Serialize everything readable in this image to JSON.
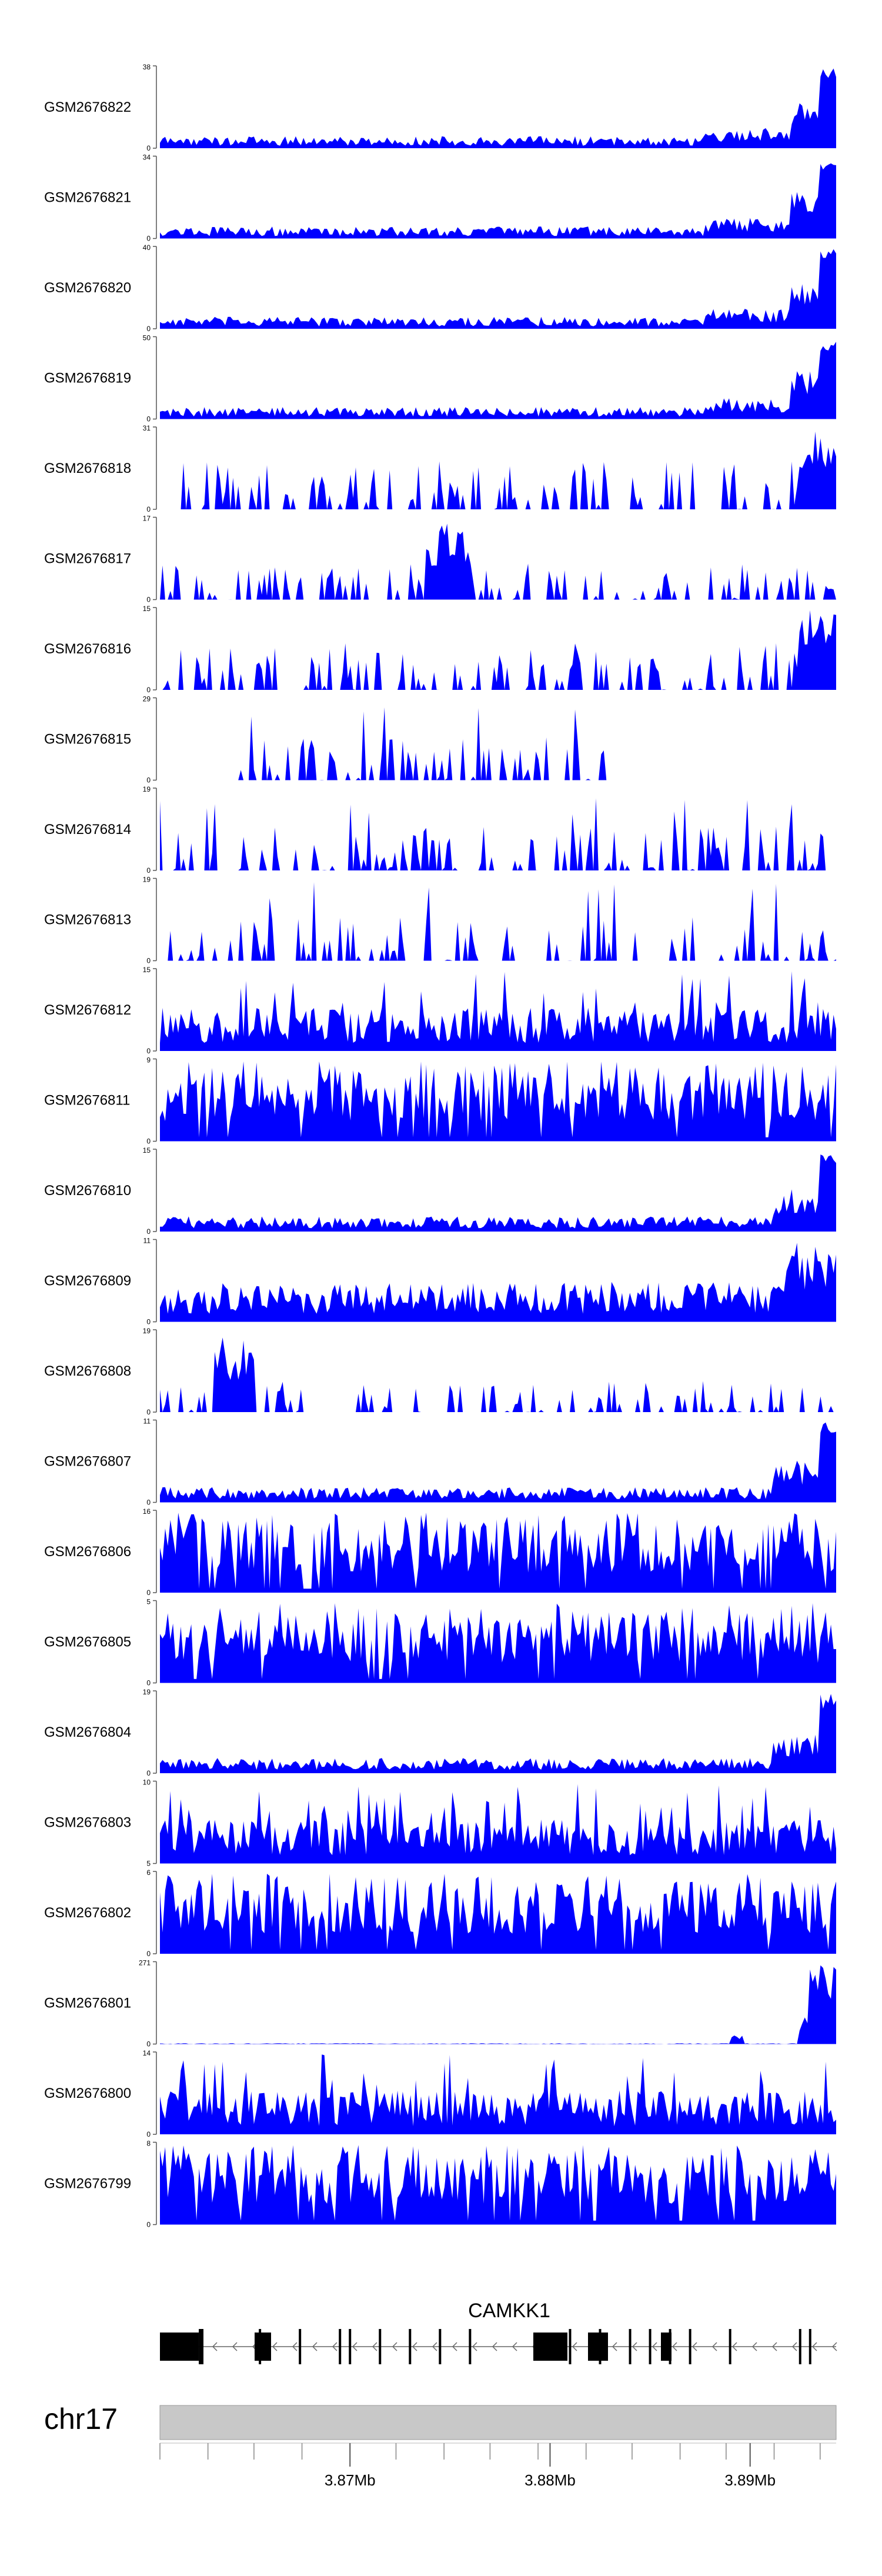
{
  "chart_data": {
    "type": "area",
    "title": "",
    "fill_color": "#0000ff",
    "tracks": [
      {
        "name": "GSM2676822",
        "ymax": "38",
        "ymin": "0",
        "profile": "peak-right"
      },
      {
        "name": "GSM2676821",
        "ymax": "34",
        "ymin": "0",
        "profile": "peak-right"
      },
      {
        "name": "GSM2676820",
        "ymax": "40",
        "ymin": "0",
        "profile": "peak-right"
      },
      {
        "name": "GSM2676819",
        "ymax": "50",
        "ymin": "0",
        "profile": "peak-right"
      },
      {
        "name": "GSM2676818",
        "ymax": "31",
        "ymin": "0",
        "profile": "sparse-right"
      },
      {
        "name": "GSM2676817",
        "ymax": "17",
        "ymin": "0",
        "profile": "sparse-mid"
      },
      {
        "name": "GSM2676816",
        "ymax": "15",
        "ymin": "0",
        "profile": "sparse-right"
      },
      {
        "name": "GSM2676815",
        "ymax": "29",
        "ymin": "0",
        "profile": "sparse-partial"
      },
      {
        "name": "GSM2676814",
        "ymax": "19",
        "ymin": "0",
        "profile": "sparse"
      },
      {
        "name": "GSM2676813",
        "ymax": "19",
        "ymin": "0",
        "profile": "sparse"
      },
      {
        "name": "GSM2676812",
        "ymax": "15",
        "ymin": "0",
        "profile": "dense-medium"
      },
      {
        "name": "GSM2676811",
        "ymax": "9",
        "ymin": "0",
        "profile": "dense-high"
      },
      {
        "name": "GSM2676810",
        "ymax": "15",
        "ymin": "0",
        "profile": "low-peak-right"
      },
      {
        "name": "GSM2676809",
        "ymax": "11",
        "ymin": "0",
        "profile": "dense-medium-right"
      },
      {
        "name": "GSM2676808",
        "ymax": "19",
        "ymin": "0",
        "profile": "sparse-left"
      },
      {
        "name": "GSM2676807",
        "ymax": "11",
        "ymin": "0",
        "profile": "low-peak-right"
      },
      {
        "name": "GSM2676806",
        "ymax": "16",
        "ymin": "0",
        "profile": "dense-high"
      },
      {
        "name": "GSM2676805",
        "ymax": "5",
        "ymin": "0",
        "profile": "dense-high"
      },
      {
        "name": "GSM2676804",
        "ymax": "19",
        "ymin": "0",
        "profile": "low-peak-right"
      },
      {
        "name": "GSM2676803",
        "ymax": "10",
        "ymin": "5",
        "profile": "dense-medium"
      },
      {
        "name": "GSM2676802",
        "ymax": "6",
        "ymin": "0",
        "profile": "dense-high"
      },
      {
        "name": "GSM2676801",
        "ymax": "271",
        "ymin": "0",
        "profile": "single-peak-right"
      },
      {
        "name": "GSM2676800",
        "ymax": "14",
        "ymin": "0",
        "profile": "dense-medium"
      },
      {
        "name": "GSM2676799",
        "ymax": "8",
        "ymin": "0",
        "profile": "dense-high"
      }
    ],
    "gene": {
      "name": "CAMKK1",
      "exon_positions_mb": [
        3.8625,
        3.8655,
        3.8675,
        3.8695,
        3.87,
        3.8715,
        3.873,
        3.8745,
        3.876,
        3.881,
        3.8825,
        3.884,
        3.885,
        3.886,
        3.887,
        3.889,
        3.8925,
        3.893
      ]
    },
    "chromosome": "chr17",
    "xlim_mb": [
      3.8605,
      3.8943
    ],
    "x_ticks_mb": [
      3.8605,
      3.8629,
      3.8652,
      3.8676,
      3.87,
      3.8723,
      3.8747,
      3.877,
      3.8794,
      3.8818,
      3.8841,
      3.8865,
      3.8888,
      3.8912,
      3.8935
    ],
    "x_tick_labels": [
      {
        "value": 3.87,
        "label": "3.87Mb"
      },
      {
        "value": 3.88,
        "label": "3.88Mb"
      },
      {
        "value": 3.89,
        "label": "3.89Mb"
      }
    ]
  }
}
